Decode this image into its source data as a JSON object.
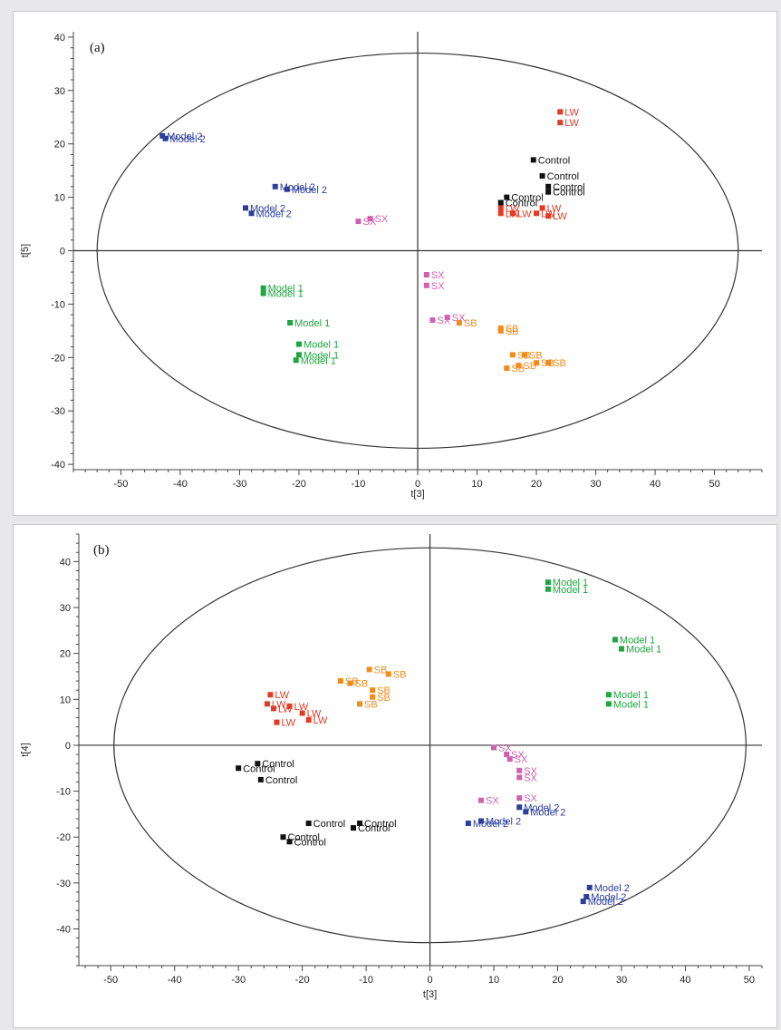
{
  "chart_data": [
    {
      "type": "scatter",
      "panel_label": "(a)",
      "xlabel": "t[3]",
      "ylabel": "t[5]",
      "xlim": [
        -58,
        58
      ],
      "ylim": [
        -41,
        41
      ],
      "xticks": [
        -50,
        -40,
        -30,
        -20,
        -10,
        0,
        10,
        20,
        30,
        40,
        50
      ],
      "xtick_labels": [
        "-50",
        "-40",
        "-30",
        "-20",
        "-10",
        "0",
        "10",
        "20",
        "30",
        "40",
        "50"
      ],
      "yticks": [
        40,
        30,
        20,
        10,
        0,
        -10,
        -20,
        -30,
        -40
      ],
      "ytick_labels": [
        "40",
        "30",
        "20",
        "10",
        "0",
        "-10",
        "-20",
        "-30",
        "-40"
      ],
      "ellipse": {
        "cx": 0,
        "cy": 0,
        "rx": 54,
        "ry": 37
      },
      "grid": false,
      "series": [
        {
          "name": "Control",
          "color": "#111111",
          "points": [
            [
              19.5,
              17,
              "Control"
            ],
            [
              21,
              14,
              "Control"
            ],
            [
              22,
              12,
              "Control"
            ],
            [
              22,
              11,
              "Control"
            ],
            [
              15,
              10,
              "Control"
            ],
            [
              14,
              9,
              "Control"
            ]
          ]
        },
        {
          "name": "LW",
          "color": "#e23a24",
          "points": [
            [
              24,
              26,
              "LW"
            ],
            [
              24,
              24,
              "LW"
            ],
            [
              14,
              8,
              "LW"
            ],
            [
              14,
              7,
              "LW"
            ],
            [
              16,
              7,
              "LW"
            ],
            [
              20,
              7,
              "LW"
            ],
            [
              21,
              8,
              "LW"
            ],
            [
              22,
              6.5,
              "LW"
            ]
          ]
        },
        {
          "name": "Model 2",
          "color": "#2b3e9e",
          "points": [
            [
              -43,
              21.5,
              "Model 2"
            ],
            [
              -42.5,
              21,
              "Model 2"
            ],
            [
              -24,
              12,
              "Model 2"
            ],
            [
              -22,
              11.5,
              "Model 2"
            ],
            [
              -29,
              8,
              "Model 2"
            ],
            [
              -28,
              7,
              "Model 2"
            ]
          ]
        },
        {
          "name": "SX",
          "color": "#d060b0",
          "points": [
            [
              -10,
              5.5,
              "SX"
            ],
            [
              -8,
              6,
              "SX"
            ],
            [
              1.5,
              -4.5,
              "SX"
            ],
            [
              1.5,
              -6.5,
              "SX"
            ],
            [
              2.5,
              -13,
              "SX"
            ],
            [
              5,
              -12.5,
              "SX"
            ]
          ]
        },
        {
          "name": "Model 1",
          "color": "#1fa640",
          "points": [
            [
              -26,
              -7,
              "Model 1"
            ],
            [
              -26,
              -8,
              "Model 1"
            ],
            [
              -21.5,
              -13.5,
              "Model 1"
            ],
            [
              -20,
              -17.5,
              "Model 1"
            ],
            [
              -20,
              -19.5,
              "Model 1"
            ],
            [
              -20.5,
              -20.5,
              "Model 1"
            ]
          ]
        },
        {
          "name": "SB",
          "color": "#f08c1e",
          "points": [
            [
              7,
              -13.5,
              "SB"
            ],
            [
              14,
              -14.5,
              "SB"
            ],
            [
              14,
              -15,
              "SB"
            ],
            [
              16,
              -19.5,
              "SB"
            ],
            [
              18,
              -19.5,
              "SB"
            ],
            [
              15,
              -22,
              "SB"
            ],
            [
              17,
              -21.5,
              "SB"
            ],
            [
              20,
              -21,
              "SB"
            ],
            [
              22,
              -21,
              "SB"
            ]
          ]
        }
      ]
    },
    {
      "type": "scatter",
      "panel_label": "(b)",
      "xlabel": "t[3]",
      "ylabel": "t[4]",
      "xlim": [
        -55,
        52
      ],
      "ylim": [
        -48,
        46
      ],
      "xticks": [
        -50,
        -40,
        -30,
        -20,
        -10,
        0,
        10,
        20,
        30,
        40,
        50
      ],
      "xtick_labels": [
        "-50",
        "-40",
        "-30",
        "-20",
        "-10",
        "0",
        "10",
        "20",
        "30",
        "40",
        "50"
      ],
      "yticks": [
        40,
        30,
        20,
        10,
        0,
        -10,
        -20,
        -30,
        -40
      ],
      "ytick_labels": [
        "40",
        "30",
        "20",
        "10",
        "0",
        "-10",
        "-20",
        "-30",
        "-40"
      ],
      "ellipse": {
        "cx": 0,
        "cy": 0,
        "rx": 49.5,
        "ry": 43
      },
      "grid": false,
      "series": [
        {
          "name": "Model 1",
          "color": "#1fa640",
          "points": [
            [
              18.5,
              35.5,
              "Model 1"
            ],
            [
              18.5,
              34,
              "Model 1"
            ],
            [
              29,
              23,
              "Model 1"
            ],
            [
              30,
              21,
              "Model 1"
            ],
            [
              28,
              11,
              "Model 1"
            ],
            [
              28,
              9,
              "Model 1"
            ]
          ]
        },
        {
          "name": "SB",
          "color": "#f08c1e",
          "points": [
            [
              -9.5,
              16.5,
              "SB"
            ],
            [
              -6.5,
              15.5,
              "SB"
            ],
            [
              -14,
              14,
              "SB"
            ],
            [
              -12.5,
              13.5,
              "SB"
            ],
            [
              -9,
              12,
              "SB"
            ],
            [
              -9,
              10.5,
              "SB"
            ],
            [
              -11,
              9,
              "SB"
            ]
          ]
        },
        {
          "name": "LW",
          "color": "#e23a24",
          "points": [
            [
              -25,
              11,
              "LW"
            ],
            [
              -25.5,
              9,
              "LW"
            ],
            [
              -24.5,
              8,
              "LW"
            ],
            [
              -22,
              8.5,
              "LW"
            ],
            [
              -20,
              7,
              "LW"
            ],
            [
              -19,
              5.5,
              "LW"
            ],
            [
              -24,
              5,
              "LW"
            ]
          ]
        },
        {
          "name": "Control",
          "color": "#111111",
          "points": [
            [
              -27,
              -4,
              "Control"
            ],
            [
              -30,
              -5,
              "Control"
            ],
            [
              -26.5,
              -7.5,
              "Control"
            ],
            [
              -19,
              -17,
              "Control"
            ],
            [
              -11,
              -17,
              "Control"
            ],
            [
              -12,
              -18,
              "Control"
            ],
            [
              -23,
              -20,
              "Control"
            ],
            [
              -22,
              -21,
              "Control"
            ]
          ]
        },
        {
          "name": "SX",
          "color": "#d060b0",
          "points": [
            [
              10,
              -0.5,
              "SX"
            ],
            [
              12,
              -2,
              "SX"
            ],
            [
              12.5,
              -3,
              "SX"
            ],
            [
              14,
              -5.5,
              "SX"
            ],
            [
              14,
              -7,
              "SX"
            ],
            [
              8,
              -12,
              "SX"
            ],
            [
              14,
              -11.5,
              "SX"
            ]
          ]
        },
        {
          "name": "Model 2",
          "color": "#2b3e9e",
          "points": [
            [
              6,
              -17,
              "Model 2"
            ],
            [
              8,
              -16.5,
              "Model 2"
            ],
            [
              14,
              -13.5,
              "Model 2"
            ],
            [
              15,
              -14.5,
              "Model 2"
            ],
            [
              25,
              -31,
              "Model 2"
            ],
            [
              24.5,
              -33,
              "Model 2"
            ],
            [
              24,
              -34,
              "Model 2"
            ]
          ]
        }
      ]
    }
  ]
}
